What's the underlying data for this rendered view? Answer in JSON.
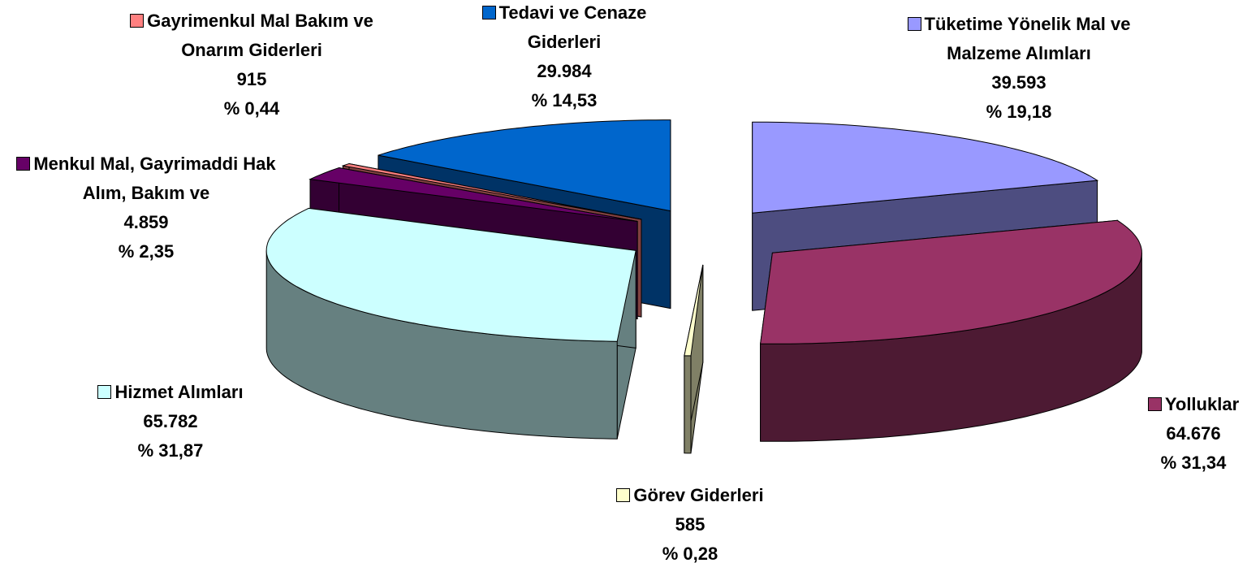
{
  "chart_data": {
    "type": "pie3d",
    "categories": [
      "Tüketime Yönelik Mal ve Malzeme Alımları",
      "Yolluklar",
      "Görev Giderleri",
      "Hizmet Alımları",
      "Menkul Mal, Gayrimaddi Hak Alım, Bakım ve",
      "Gayrimenkul Mal Bakım ve Onarım Giderleri",
      "Tedavi ve Cenaze Giderleri"
    ],
    "values": [
      39593,
      64676,
      585,
      65782,
      4859,
      915,
      29984
    ],
    "value_labels": [
      "39.593",
      "64.676",
      "585",
      "65.782",
      "4.859",
      "915",
      "29.984"
    ],
    "percent_labels": [
      "% 19,18",
      "% 31,34",
      "% 0,28",
      "% 31,87",
      "% 2,35",
      "% 0,44",
      "% 14,53"
    ],
    "colors": [
      "#9999ff",
      "#993366",
      "#ffffcc",
      "#ccffff",
      "#660066",
      "#ff8080",
      "#0066cc"
    ],
    "legend": true
  }
}
